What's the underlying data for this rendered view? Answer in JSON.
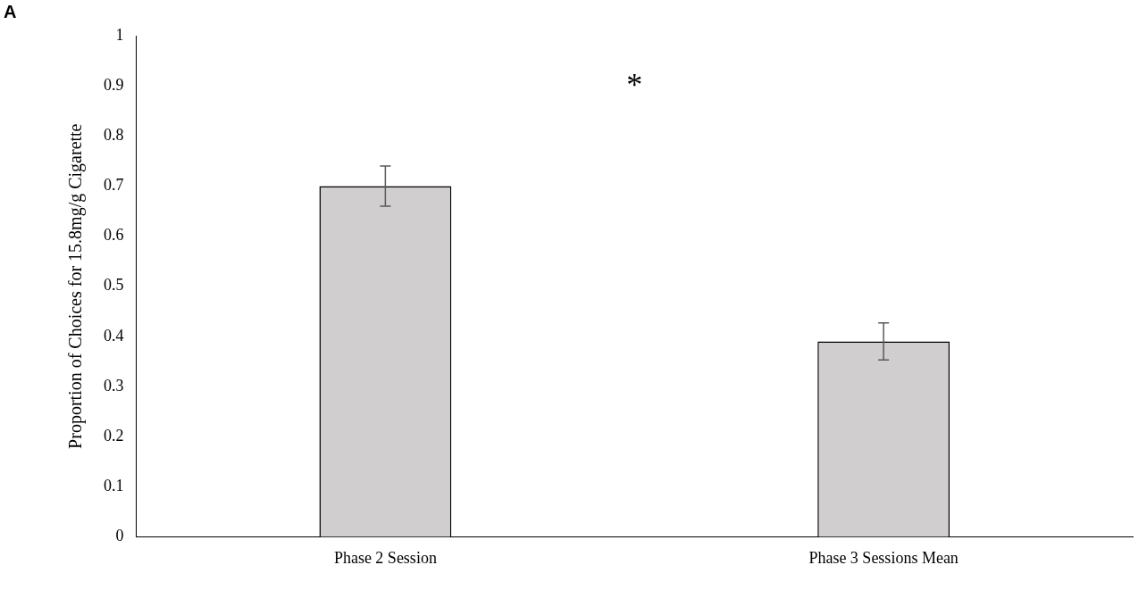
{
  "chart_data": {
    "type": "bar",
    "ylabel": "Proportion of Choices for 15.8mg/g Cigarette",
    "categories": [
      "Phase 2 Session",
      "Phase 3 Sessions Mean"
    ],
    "values": [
      0.7,
      0.39
    ],
    "errors": [
      0.04,
      0.037
    ],
    "color": "#d0cece",
    "ylim": [
      0,
      1
    ],
    "yticks": [
      0,
      0.1,
      0.2,
      0.3,
      0.4,
      0.5,
      0.6,
      0.7,
      0.8,
      0.9,
      1
    ],
    "grid": false,
    "legend": false,
    "annotations": [
      "A",
      "*"
    ]
  }
}
